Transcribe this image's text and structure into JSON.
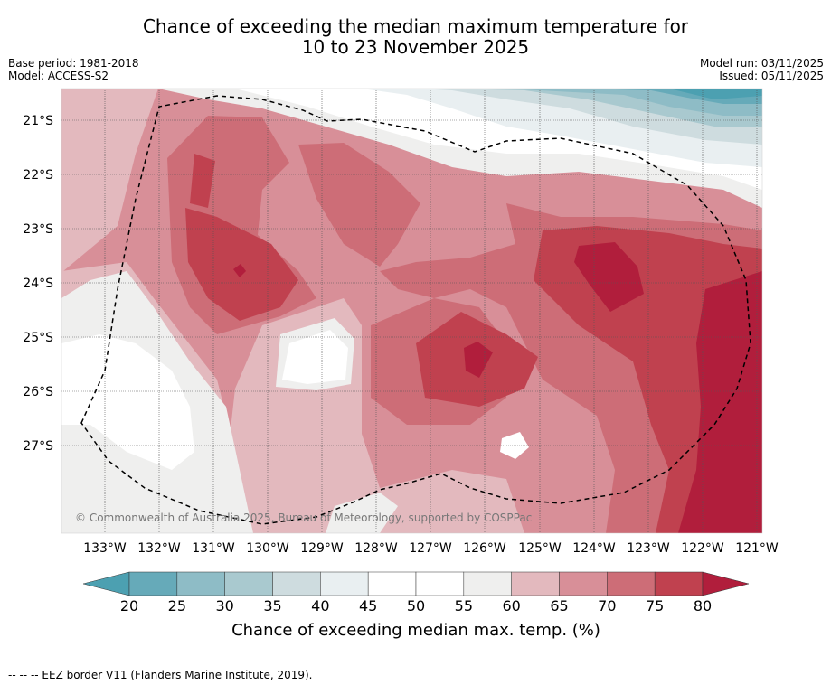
{
  "title_line1": "Chance of exceeding the median maximum temperature for",
  "title_line2": "10 to 23 November 2025",
  "meta": {
    "base_period": "Base period: 1981-2018",
    "model": "Model: ACCESS-S2",
    "model_run": "Model run: 03/11/2025",
    "issued": "Issued: 05/11/2025"
  },
  "map": {
    "lat_labels": [
      "21°S",
      "22°S",
      "23°S",
      "24°S",
      "25°S",
      "26°S",
      "27°S"
    ],
    "lon_labels": [
      "133°W",
      "132°W",
      "131°W",
      "130°W",
      "129°W",
      "128°W",
      "127°W",
      "126°W",
      "125°W",
      "124°W",
      "123°W",
      "122°W",
      "121°W"
    ],
    "copyright": "© Commonwealth of Australia 2025, Bureau of Meteorology, supported by COSPPac"
  },
  "colorbar": {
    "ticks": [
      "20",
      "25",
      "30",
      "35",
      "40",
      "45",
      "50",
      "55",
      "60",
      "65",
      "70",
      "75",
      "80"
    ],
    "colors": [
      "#66aab9",
      "#8ebcc6",
      "#a9c9cf",
      "#cedcdf",
      "#e9eff1",
      "#ffffff",
      "#ffffff",
      "#efefee",
      "#e3b9be",
      "#d88f98",
      "#cd6d77",
      "#c0414f"
    ],
    "under_color": "#4ca0b1",
    "over_color": "#b11e3c",
    "label": "Chance of exceeding median max. temp. (%)"
  },
  "footer": "--  --  -- EEZ border V11 (Flanders Marine Institute, 2019)."
}
